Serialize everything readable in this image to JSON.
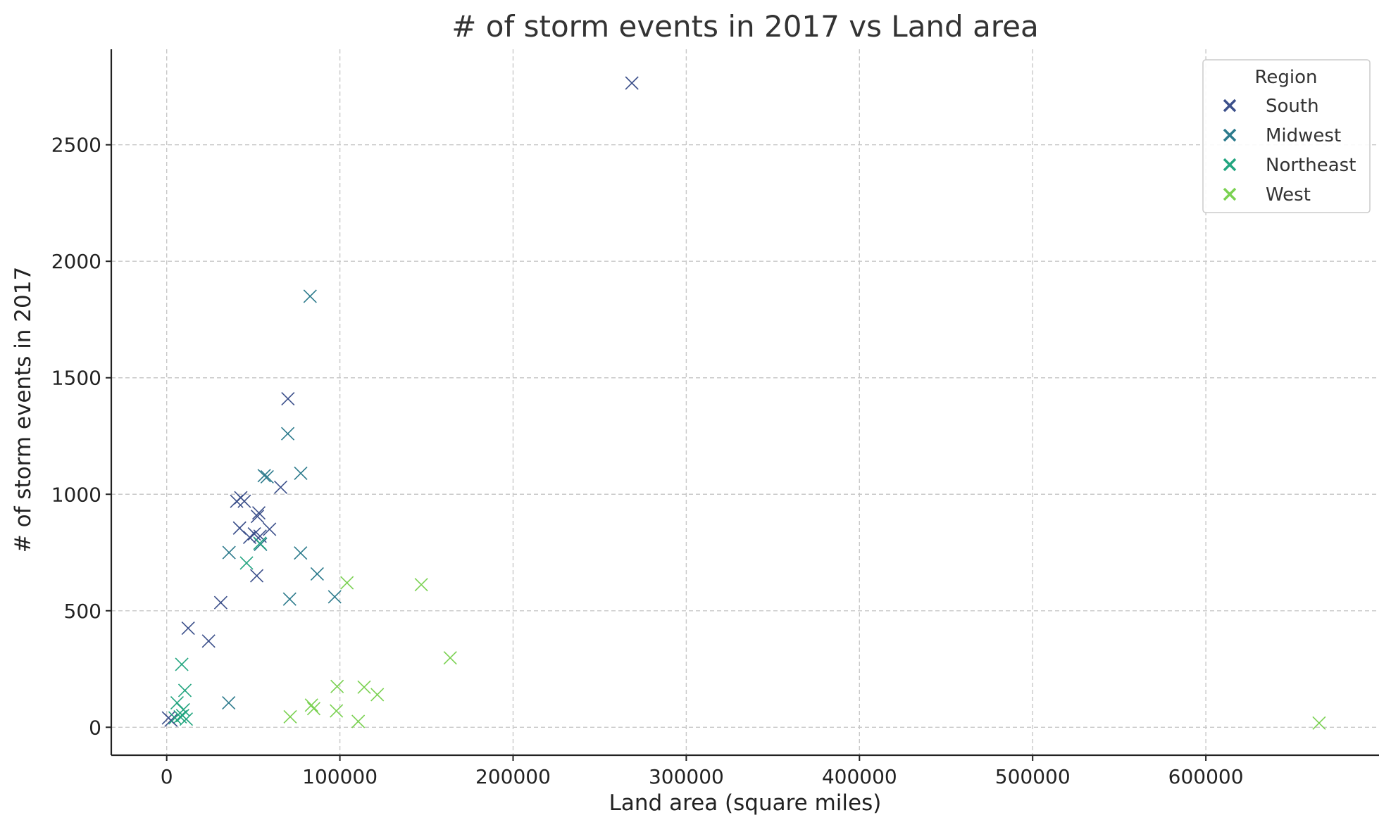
{
  "chart_data": {
    "type": "scatter",
    "title": "# of storm events in 2017 vs Land area",
    "xlabel": "Land area (square miles)",
    "ylabel": "# of storm events in 2017",
    "xlim": [
      -32000,
      700000
    ],
    "ylim": [
      -120,
      2910
    ],
    "xticks": [
      0,
      100000,
      200000,
      300000,
      400000,
      500000,
      600000
    ],
    "yticks": [
      0,
      500,
      1000,
      1500,
      2000,
      2500
    ],
    "grid": true,
    "marker": "x",
    "legend": {
      "title": "Region",
      "placement": "top-right"
    },
    "series": [
      {
        "name": "South",
        "color": "#3b4f8a",
        "points": [
          [
            268600,
            2765
          ],
          [
            70000,
            1410
          ],
          [
            65800,
            1030
          ],
          [
            42800,
            985
          ],
          [
            40400,
            970
          ],
          [
            44800,
            970
          ],
          [
            53200,
            920
          ],
          [
            52400,
            905
          ],
          [
            42100,
            855
          ],
          [
            59400,
            850
          ],
          [
            50600,
            830
          ],
          [
            47900,
            815
          ],
          [
            53900,
            820
          ],
          [
            52000,
            650
          ],
          [
            31200,
            535
          ],
          [
            12400,
            425
          ],
          [
            24200,
            370
          ],
          [
            2500,
            30
          ],
          [
            1000,
            40
          ]
        ]
      },
      {
        "name": "Midwest",
        "color": "#2b7a8c",
        "points": [
          [
            82800,
            1850
          ],
          [
            69900,
            1260
          ],
          [
            77400,
            1090
          ],
          [
            56300,
            1080
          ],
          [
            58000,
            1075
          ],
          [
            36000,
            750
          ],
          [
            77300,
            748
          ],
          [
            54200,
            785
          ],
          [
            86900,
            658
          ],
          [
            71000,
            550
          ],
          [
            97000,
            560
          ],
          [
            35800,
            105
          ]
        ]
      },
      {
        "name": "Northeast",
        "color": "#22a57f",
        "points": [
          [
            46100,
            705
          ],
          [
            53800,
            790
          ],
          [
            8700,
            270
          ],
          [
            10500,
            158
          ],
          [
            6000,
            105
          ],
          [
            9600,
            75
          ],
          [
            9200,
            50
          ],
          [
            11300,
            35
          ],
          [
            7800,
            45
          ],
          [
            4800,
            40
          ]
        ]
      },
      {
        "name": "West",
        "color": "#7ad151",
        "points": [
          [
            104100,
            620
          ],
          [
            147000,
            612
          ],
          [
            163700,
            298
          ],
          [
            98400,
            175
          ],
          [
            114000,
            172
          ],
          [
            121600,
            140
          ],
          [
            84900,
            80
          ],
          [
            83600,
            95
          ],
          [
            98000,
            70
          ],
          [
            71300,
            45
          ],
          [
            110600,
            25
          ],
          [
            665400,
            18
          ]
        ]
      }
    ]
  }
}
